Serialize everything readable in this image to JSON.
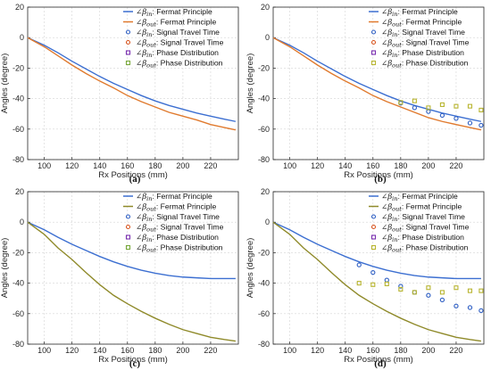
{
  "chart_data": [
    {
      "type": "line",
      "caption": "(a)",
      "xlabel": "Rx Positions (mm)",
      "ylabel": "Angles (degree)",
      "xlim": [
        88,
        240
      ],
      "ylim": [
        -80,
        20
      ],
      "xticks": [
        100,
        120,
        140,
        160,
        180,
        200,
        220
      ],
      "yticks": [
        20,
        0,
        -20,
        -40,
        -60,
        -80
      ],
      "grid": true,
      "legend_position": "top-right",
      "series": [
        {
          "name": "∠βin: Fermat Principle",
          "sym": "∠β",
          "sub": "in",
          "desc": ": Fermat Principle",
          "style": "line",
          "color": "#3c6fd1",
          "x": [
            88,
            100,
            110,
            120,
            130,
            140,
            150,
            160,
            170,
            180,
            190,
            200,
            210,
            220,
            230,
            238
          ],
          "y": [
            0,
            -5,
            -10,
            -15.5,
            -20.5,
            -25.5,
            -30,
            -34,
            -38,
            -41.5,
            -44.5,
            -47,
            -49.5,
            -51.5,
            -53.5,
            -55
          ]
        },
        {
          "name": "∠βout: Fermat Principle",
          "sym": "∠β",
          "sub": "out",
          "desc": ": Fermat Principle",
          "style": "line",
          "color": "#e07a2e",
          "x": [
            88,
            100,
            110,
            120,
            130,
            140,
            150,
            160,
            170,
            180,
            190,
            200,
            210,
            220,
            230,
            238
          ],
          "y": [
            0,
            -6,
            -12,
            -18,
            -23.5,
            -28.5,
            -33,
            -38,
            -42,
            -45.5,
            -49,
            -51.5,
            -54,
            -57,
            -59,
            -60.5
          ]
        },
        {
          "name": "∠βin: Signal Travel Time",
          "sym": "∠β",
          "sub": "in",
          "desc": ": Signal Travel Time",
          "style": "circle",
          "color": "#2f5fc4",
          "x": [],
          "y": []
        },
        {
          "name": "∠βout: Signal Travel Time",
          "sym": "∠β",
          "sub": "out",
          "desc": ": Signal Travel Time",
          "style": "circle",
          "color": "#d9541e",
          "x": [],
          "y": []
        },
        {
          "name": "∠βin: Phase Distribution",
          "sym": "∠β",
          "sub": "in",
          "desc": ": Phase Distribution",
          "style": "square",
          "color": "#7a2fb0",
          "x": [],
          "y": []
        },
        {
          "name": "∠βout: Phase Distribution",
          "sym": "∠β",
          "sub": "out",
          "desc": ": Phase Distribution",
          "style": "square",
          "color": "#78a83a",
          "x": [],
          "y": []
        }
      ]
    },
    {
      "type": "line",
      "caption": "(b)",
      "xlabel": "Rx Positions (mm)",
      "ylabel": "Angles (degree)",
      "xlim": [
        88,
        240
      ],
      "ylim": [
        -80,
        20
      ],
      "xticks": [
        100,
        120,
        140,
        160,
        180,
        200,
        220
      ],
      "yticks": [
        20,
        0,
        -20,
        -40,
        -60,
        -80
      ],
      "grid": true,
      "legend_position": "top-right",
      "series": [
        {
          "name": "∠βin: Fermat Principle",
          "sym": "∠β",
          "sub": "in",
          "desc": ": Fermat Principle",
          "style": "line",
          "color": "#3c6fd1",
          "x": [
            88,
            100,
            110,
            120,
            130,
            140,
            150,
            160,
            170,
            180,
            190,
            200,
            210,
            220,
            230,
            238
          ],
          "y": [
            0,
            -5,
            -10,
            -15.5,
            -20.5,
            -25.5,
            -30,
            -34,
            -38,
            -41.5,
            -44.5,
            -47,
            -49.5,
            -51.5,
            -53.5,
            -55
          ]
        },
        {
          "name": "∠βout: Fermat Principle",
          "sym": "∠β",
          "sub": "out",
          "desc": ": Fermat Principle",
          "style": "line",
          "color": "#e07a2e",
          "x": [
            88,
            100,
            110,
            120,
            130,
            140,
            150,
            160,
            170,
            180,
            190,
            200,
            210,
            220,
            230,
            238
          ],
          "y": [
            0,
            -6,
            -12,
            -18,
            -23.5,
            -28.5,
            -33,
            -38,
            -42,
            -45.5,
            -49,
            -52.5,
            -55,
            -57,
            -59,
            -60.5
          ]
        },
        {
          "name": "∠βin: Signal Travel Time",
          "sym": "∠β",
          "sub": "in",
          "desc": ": Signal Travel Time",
          "style": "circle",
          "color": "#2f5fc4",
          "x": [
            180,
            190,
            200,
            210,
            220,
            230,
            238
          ],
          "y": [
            -43,
            -46,
            -48.5,
            -51,
            -53,
            -56,
            -57.5
          ]
        },
        {
          "name": "∠βout: Signal Travel Time",
          "sym": "∠β",
          "sub": "out",
          "desc": ": Signal Travel Time",
          "style": "circle",
          "color": "#d9541e",
          "x": [],
          "y": []
        },
        {
          "name": "∠βin: Phase Distribution",
          "sym": "∠β",
          "sub": "in",
          "desc": ": Phase Distribution",
          "style": "square",
          "color": "#7a2fb0",
          "x": [],
          "y": []
        },
        {
          "name": "∠βout: Phase Distribution",
          "sym": "∠β",
          "sub": "out",
          "desc": ": Phase Distribution",
          "style": "square",
          "color": "#b8b531",
          "x": [
            180,
            190,
            200,
            210,
            220,
            230,
            238
          ],
          "y": [
            -42.5,
            -41.5,
            -46,
            -44,
            -45,
            -45,
            -47.5
          ]
        }
      ]
    },
    {
      "type": "line",
      "caption": "(c)",
      "xlabel": "Rx Positions (mm)",
      "ylabel": "Angles (degree)",
      "xlim": [
        88,
        240
      ],
      "ylim": [
        -80,
        20
      ],
      "xticks": [
        100,
        120,
        140,
        160,
        180,
        200,
        220
      ],
      "yticks": [
        20,
        0,
        -20,
        -40,
        -60,
        -80
      ],
      "grid": true,
      "legend_position": "top-right",
      "series": [
        {
          "name": "∠βin: Fermat Principle",
          "sym": "∠β",
          "sub": "in",
          "desc": ": Fermat Principle",
          "style": "line",
          "color": "#3c6fd1",
          "x": [
            88,
            100,
            110,
            120,
            130,
            140,
            150,
            160,
            170,
            180,
            190,
            200,
            210,
            220,
            230,
            238
          ],
          "y": [
            0,
            -5,
            -10,
            -14.5,
            -18.5,
            -22.5,
            -26,
            -29,
            -31.5,
            -33.5,
            -35,
            -36,
            -36.5,
            -37,
            -37,
            -37
          ]
        },
        {
          "name": "∠βout: Fermat Principle",
          "sym": "∠β",
          "sub": "out",
          "desc": ": Fermat Principle",
          "style": "line",
          "color": "#8f8a2a",
          "x": [
            88,
            100,
            110,
            120,
            130,
            140,
            150,
            160,
            170,
            180,
            190,
            200,
            210,
            220,
            230,
            238
          ],
          "y": [
            0,
            -8,
            -17,
            -24.5,
            -33,
            -41,
            -48,
            -53.5,
            -58.5,
            -63,
            -67,
            -70.5,
            -73,
            -75.5,
            -77,
            -78
          ]
        },
        {
          "name": "∠βin: Signal Travel Time",
          "sym": "∠β",
          "sub": "in",
          "desc": ": Signal Travel Time",
          "style": "circle",
          "color": "#2f5fc4",
          "x": [],
          "y": []
        },
        {
          "name": "∠βout: Signal Travel Time",
          "sym": "∠β",
          "sub": "out",
          "desc": ": Signal Travel Time",
          "style": "circle",
          "color": "#d9541e",
          "x": [],
          "y": []
        },
        {
          "name": "∠βin: Phase Distribution",
          "sym": "∠β",
          "sub": "in",
          "desc": ": Phase Distribution",
          "style": "square",
          "color": "#7a2fb0",
          "x": [],
          "y": []
        },
        {
          "name": "∠βout: Phase Distribution",
          "sym": "∠β",
          "sub": "out",
          "desc": ": Phase Distribution",
          "style": "square",
          "color": "#78a83a",
          "x": [],
          "y": []
        }
      ]
    },
    {
      "type": "line",
      "caption": "(d)",
      "xlabel": "Rx Positions (mm)",
      "ylabel": "Angles (degree)",
      "xlim": [
        88,
        240
      ],
      "ylim": [
        -80,
        20
      ],
      "xticks": [
        100,
        120,
        140,
        160,
        180,
        200,
        220
      ],
      "yticks": [
        20,
        0,
        -20,
        -40,
        -60,
        -80
      ],
      "grid": true,
      "legend_position": "top-right",
      "series": [
        {
          "name": "∠βin: Fermat Principle",
          "sym": "∠β",
          "sub": "in",
          "desc": ": Fermat Principle",
          "style": "line",
          "color": "#3c6fd1",
          "x": [
            88,
            100,
            110,
            120,
            130,
            140,
            150,
            160,
            170,
            180,
            190,
            200,
            210,
            220,
            230,
            238
          ],
          "y": [
            0,
            -5,
            -10,
            -14.5,
            -18.5,
            -22.5,
            -26,
            -29,
            -31.5,
            -33.5,
            -35,
            -36,
            -36.5,
            -37,
            -37,
            -37
          ]
        },
        {
          "name": "∠βout: Fermat Principle",
          "sym": "∠β",
          "sub": "out",
          "desc": ": Fermat Principle",
          "style": "line",
          "color": "#8f8a2a",
          "x": [
            88,
            100,
            110,
            120,
            130,
            140,
            150,
            160,
            170,
            180,
            190,
            200,
            210,
            220,
            230,
            238
          ],
          "y": [
            0,
            -8,
            -17,
            -24.5,
            -33,
            -41,
            -48,
            -53.5,
            -58.5,
            -63,
            -67,
            -70.5,
            -73,
            -75.5,
            -77,
            -78
          ]
        },
        {
          "name": "∠βin: Signal Travel Time",
          "sym": "∠β",
          "sub": "in",
          "desc": ": Signal Travel Time",
          "style": "circle",
          "color": "#2f5fc4",
          "x": [
            150,
            160,
            170,
            180,
            190,
            200,
            210,
            220,
            230,
            238
          ],
          "y": [
            -28,
            -33,
            -38,
            -42,
            -46,
            -48,
            -51,
            -55,
            -56,
            -58
          ]
        },
        {
          "name": "∠βout: Signal Travel Time",
          "sym": "∠β",
          "sub": "out",
          "desc": ": Signal Travel Time",
          "style": "circle",
          "color": "#d9541e",
          "x": [],
          "y": []
        },
        {
          "name": "∠βin: Phase Distribution",
          "sym": "∠β",
          "sub": "in",
          "desc": ": Phase Distribution",
          "style": "square",
          "color": "#7a2fb0",
          "x": [],
          "y": []
        },
        {
          "name": "∠βout: Phase Distribution",
          "sym": "∠β",
          "sub": "out",
          "desc": ": Phase Distribution",
          "style": "square",
          "color": "#b8b531",
          "x": [
            150,
            160,
            170,
            180,
            190,
            200,
            210,
            220,
            230,
            238
          ],
          "y": [
            -40,
            -41,
            -40.5,
            -44,
            -46,
            -43,
            -46,
            -43,
            -45,
            -45
          ]
        }
      ]
    }
  ]
}
